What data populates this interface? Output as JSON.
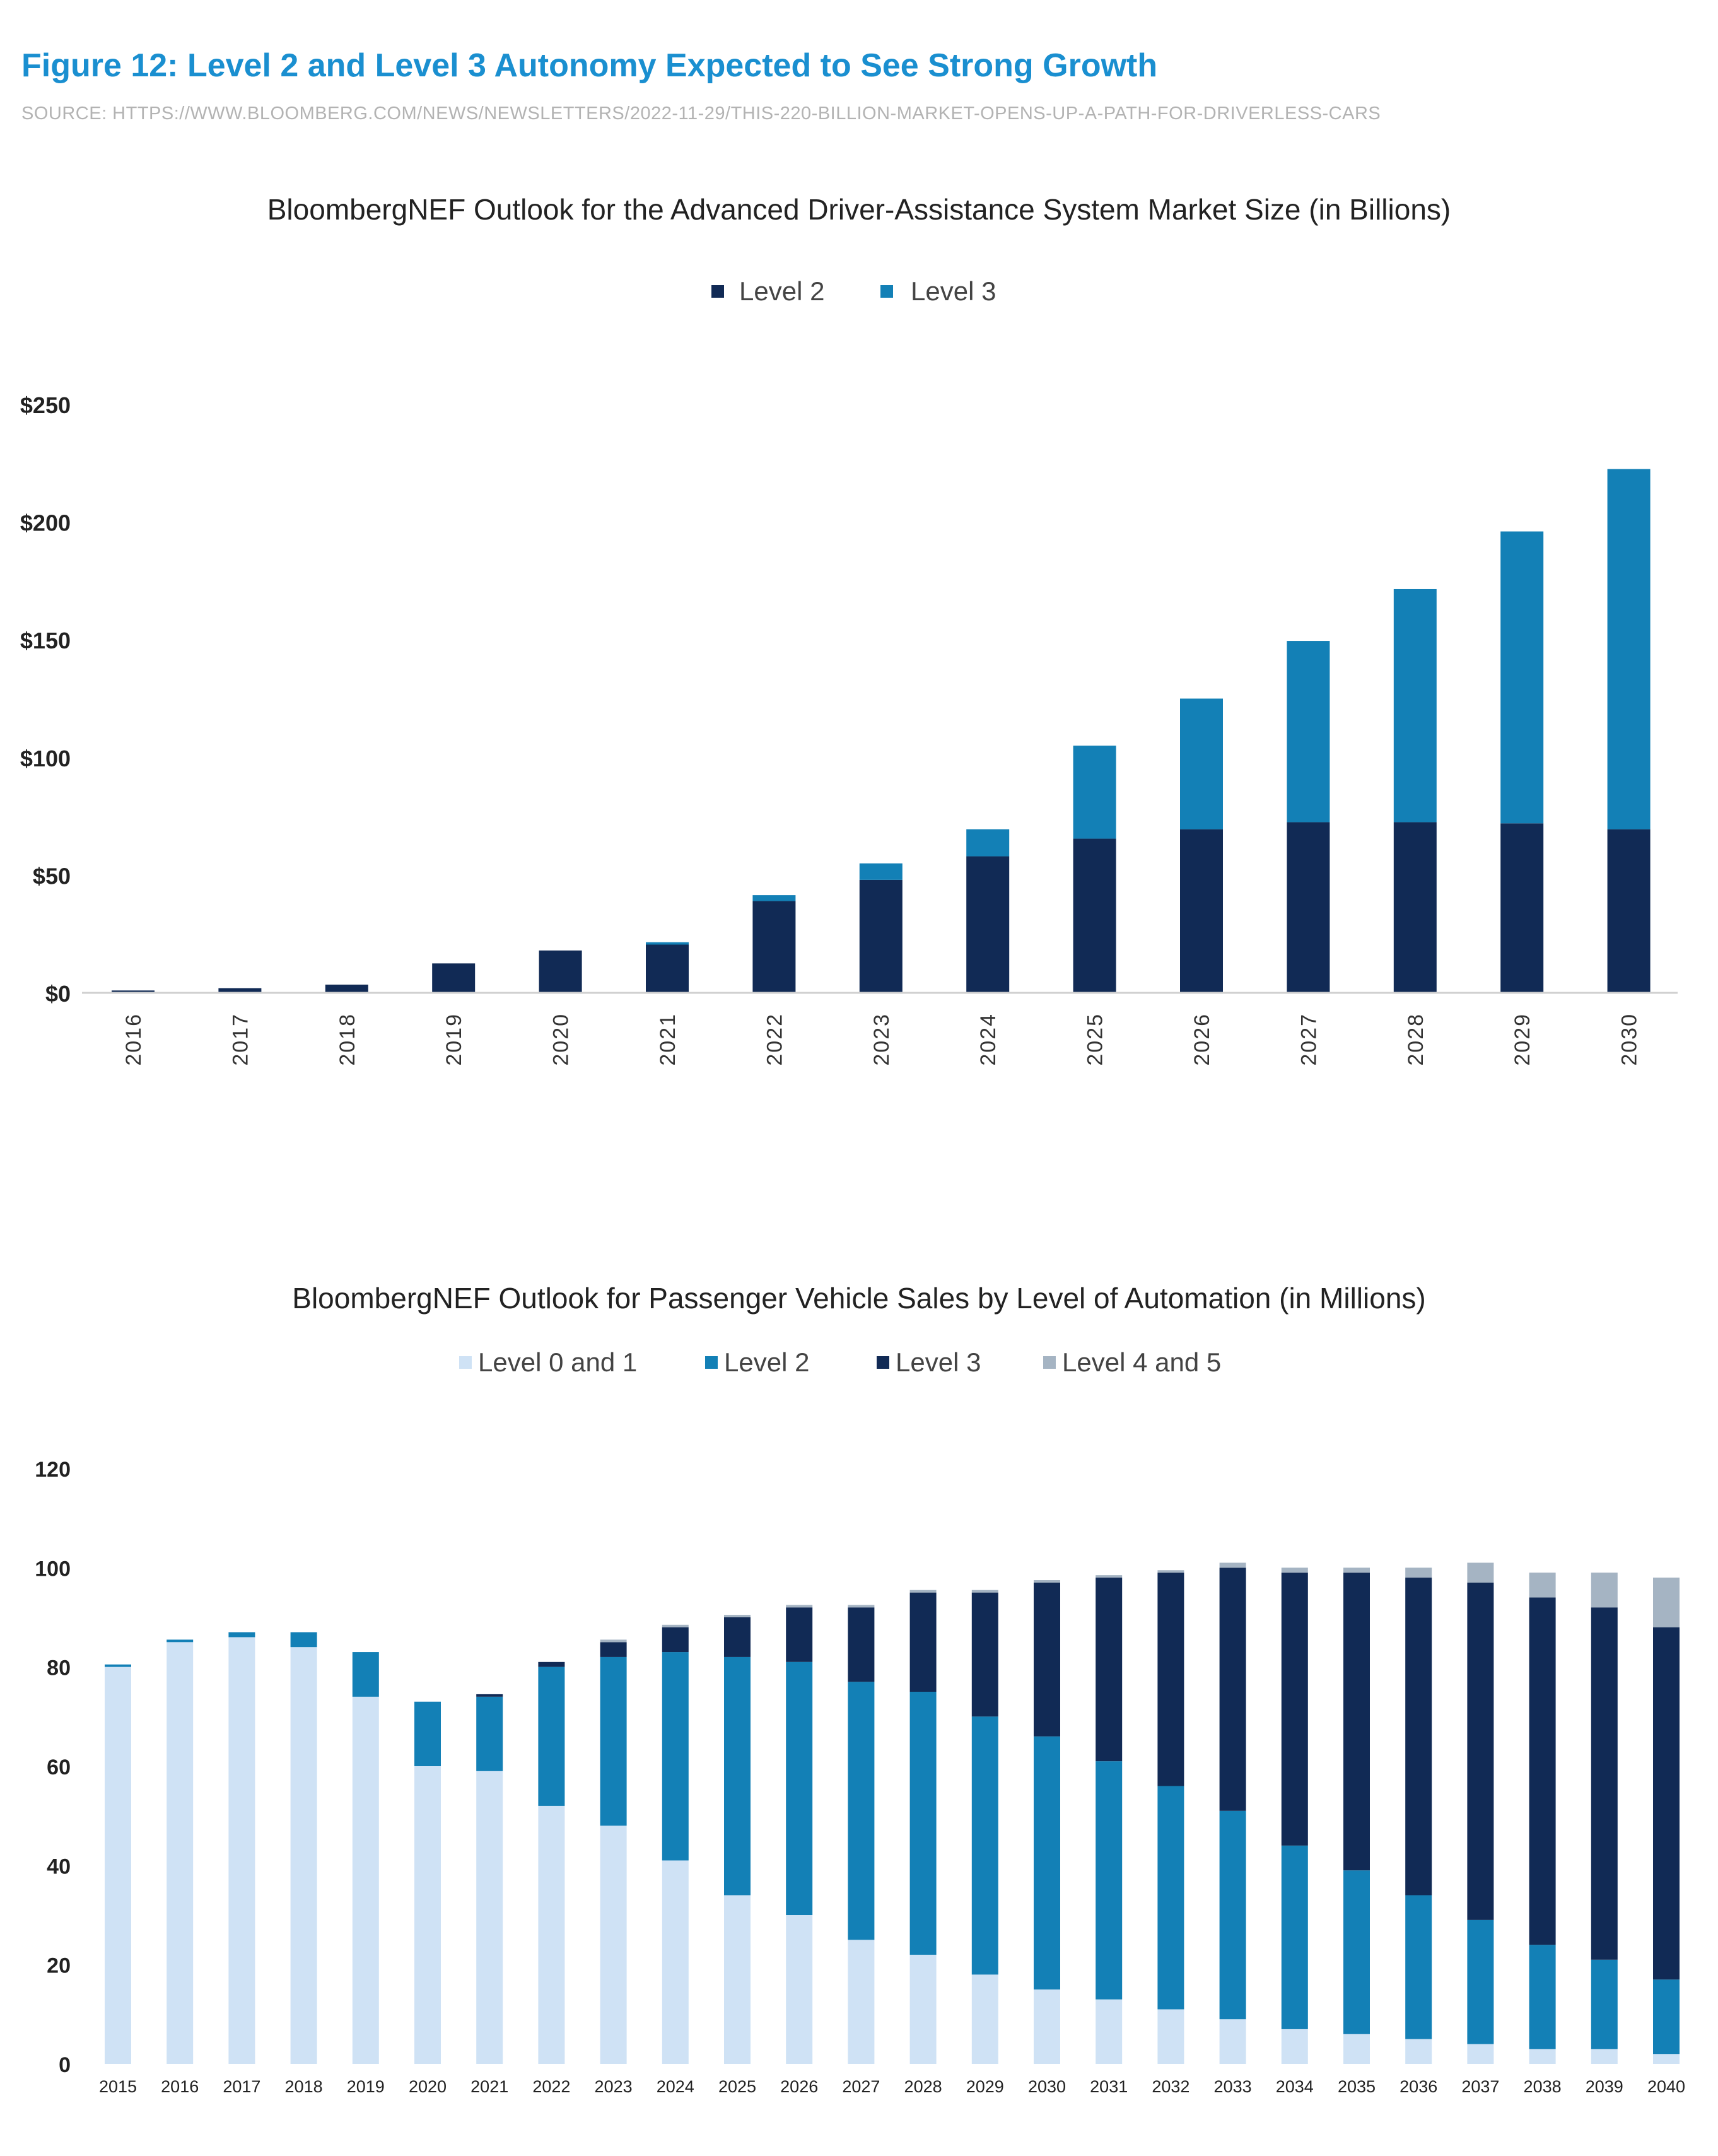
{
  "header": {
    "title": "Figure 12: Level 2 and Level 3 Autonomy Expected to See Strong Growth",
    "source": "SOURCE: HTTPS://WWW.BLOOMBERG.COM/NEWS/NEWSLETTERS/2022-11-29/THIS-220-BILLION-MARKET-OPENS-UP-A-PATH-FOR-DRIVERLESS-CARS"
  },
  "colors": {
    "level_0_1": "#cfe2f5",
    "level_2_light": "#1380b6",
    "level_3_dark": "#112a55",
    "level_4_5": "#a5b4c3",
    "axis": "#d0d0d0",
    "title_blue": "#1a8fd0"
  },
  "chart_data": [
    {
      "type": "bar",
      "stacked": true,
      "title": "BloombergNEF Outlook for the Advanced Driver-Assistance System Market Size (in Billions)",
      "xlabel": "",
      "ylabel": "",
      "categories": [
        "2016",
        "2017",
        "2018",
        "2019",
        "2020",
        "2021",
        "2022",
        "2023",
        "2024",
        "2025",
        "2026",
        "2027",
        "2028",
        "2029",
        "2030"
      ],
      "series": [
        {
          "name": "Level 2",
          "color": "#112a55",
          "values": [
            1,
            2,
            3.5,
            12.5,
            18,
            20.5,
            39,
            48,
            58,
            65.5,
            69.5,
            72.5,
            72.5,
            72,
            69.5
          ]
        },
        {
          "name": "Level 3",
          "color": "#1380b6",
          "values": [
            0,
            0,
            0,
            0,
            0,
            1,
            2.5,
            7,
            11.5,
            39.5,
            55.5,
            77,
            99,
            124,
            153
          ]
        }
      ],
      "ylim": [
        0,
        250
      ],
      "yticks": [
        0,
        50,
        100,
        150,
        200,
        250
      ],
      "ytick_labels": [
        "$0",
        "$50",
        "$100",
        "$150",
        "$200",
        "$250"
      ],
      "legend": "top-center",
      "grid": false
    },
    {
      "type": "bar",
      "stacked": true,
      "title": "BloombergNEF Outlook for Passenger Vehicle Sales by Level of Automation (in Millions)",
      "xlabel": "",
      "ylabel": "",
      "categories": [
        "2015",
        "2016",
        "2017",
        "2018",
        "2019",
        "2020",
        "2021",
        "2022",
        "2023",
        "2024",
        "2025",
        "2026",
        "2027",
        "2028",
        "2029",
        "2030",
        "2031",
        "2032",
        "2033",
        "2034",
        "2035",
        "2036",
        "2037",
        "2038",
        "2039",
        "2040"
      ],
      "series": [
        {
          "name": "Level 0 and 1",
          "color": "#cfe2f5",
          "values": [
            80,
            85,
            86,
            84,
            74,
            60,
            59,
            52,
            48,
            41,
            34,
            30,
            25,
            22,
            18,
            15,
            13,
            11,
            9,
            7,
            6,
            5,
            4,
            3,
            3,
            2
          ]
        },
        {
          "name": "Level 2",
          "color": "#1380b6",
          "values": [
            0.5,
            0.5,
            1,
            3,
            9,
            13,
            15,
            28,
            34,
            42,
            48,
            51,
            52,
            53,
            52,
            51,
            48,
            45,
            42,
            37,
            33,
            29,
            25,
            21,
            18,
            15
          ]
        },
        {
          "name": "Level 3",
          "color": "#112a55",
          "values": [
            0,
            0,
            0,
            0,
            0,
            0,
            0.5,
            1,
            3,
            5,
            8,
            11,
            15,
            20,
            25,
            31,
            37,
            43,
            49,
            55,
            60,
            64,
            68,
            70,
            71,
            71
          ]
        },
        {
          "name": "Level 4 and 5",
          "color": "#a5b4c3",
          "values": [
            0,
            0,
            0,
            0,
            0,
            0,
            0,
            0,
            0.5,
            0.5,
            0.5,
            0.5,
            0.5,
            0.5,
            0.5,
            0.5,
            0.5,
            0.5,
            1,
            1,
            1,
            2,
            4,
            5,
            7,
            10
          ]
        }
      ],
      "ylim": [
        0,
        120
      ],
      "yticks": [
        0,
        20,
        40,
        60,
        80,
        100,
        120
      ],
      "ytick_labels": [
        "0",
        "20",
        "40",
        "60",
        "80",
        "100",
        "120"
      ],
      "legend": "top-center",
      "grid": false
    }
  ]
}
